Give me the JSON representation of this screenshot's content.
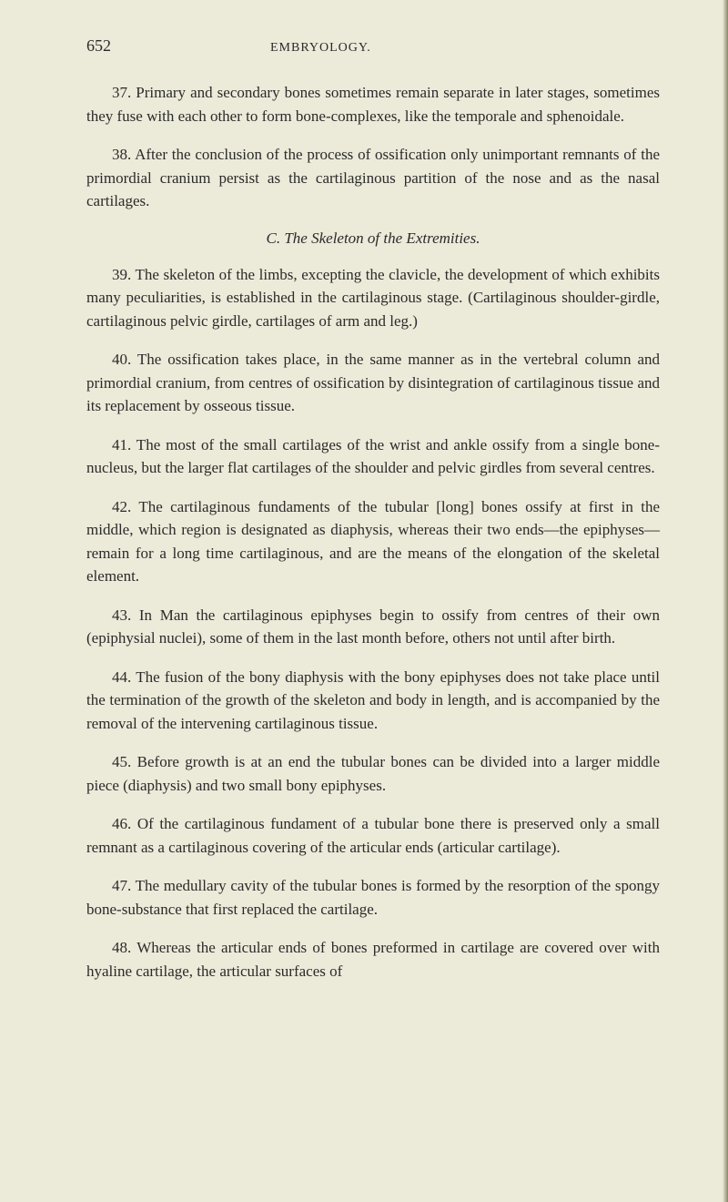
{
  "header": {
    "page_number": "652",
    "running_title": "EMBRYOLOGY."
  },
  "paragraphs": {
    "p37": "37. Primary and secondary bones sometimes remain separate in later stages, sometimes they fuse with each other to form bone-complexes, like the temporale and sphenoidale.",
    "p38": "38. After the conclusion of the process of ossification only unimportant remnants of the primordial cranium persist as the cartilaginous partition of the nose and as the nasal cartilages.",
    "heading_c": "C. The Skeleton of the Extremities.",
    "p39": "39. The skeleton of the limbs, excepting the clavicle, the development of which exhibits many peculiarities, is established in the cartilaginous stage. (Cartilaginous shoulder-girdle, cartilaginous pelvic girdle, cartilages of arm and leg.)",
    "p40": "40. The ossification takes place, in the same manner as in the vertebral column and primordial cranium, from centres of ossification by disintegration of cartilaginous tissue and its replacement by osseous tissue.",
    "p41": "41. The most of the small cartilages of the wrist and ankle ossify from a single bone-nucleus, but the larger flat cartilages of the shoulder and pelvic girdles from several centres.",
    "p42": "42. The cartilaginous fundaments of the tubular [long] bones ossify at first in the middle, which region is designated as diaphysis, whereas their two ends—the epiphyses—remain for a long time cartilaginous, and are the means of the elongation of the skeletal element.",
    "p43": "43. In Man the cartilaginous epiphyses begin to ossify from centres of their own (epiphysial nuclei), some of them in the last month before, others not until after birth.",
    "p44": "44. The fusion of the bony diaphysis with the bony epiphyses does not take place until the termination of the growth of the skeleton and body in length, and is accompanied by the removal of the intervening cartilaginous tissue.",
    "p45": "45. Before growth is at an end the tubular bones can be divided into a larger middle piece (diaphysis) and two small bony epiphyses.",
    "p46": "46. Of the cartilaginous fundament of a tubular bone there is preserved only a small remnant as a cartilaginous covering of the articular ends (articular cartilage).",
    "p47": "47. The medullary cavity of the tubular bones is formed by the resorption of the spongy bone-substance that first replaced the cartilage.",
    "p48": "48. Whereas the articular ends of bones preformed in cartilage are covered over with hyaline cartilage, the articular surfaces of"
  },
  "styles": {
    "background_color": "#ecead9",
    "text_color": "#2a2a2a",
    "body_fontsize": 17,
    "header_pagenum_fontsize": 18,
    "header_title_fontsize": 14,
    "line_height": 1.5,
    "font_family": "Georgia, Times New Roman, serif"
  }
}
